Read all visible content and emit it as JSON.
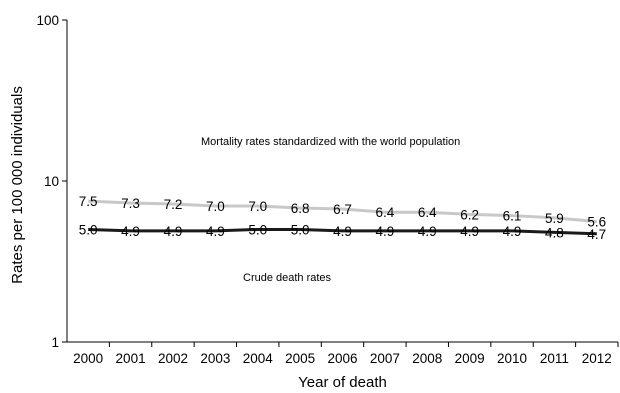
{
  "chart_data": {
    "type": "line",
    "title": "",
    "xlabel": "Year of death",
    "ylabel": "Rates per 100 000 individuals",
    "y_scale": "log",
    "ylim": [
      1,
      100
    ],
    "y_ticks": [
      "1",
      "10",
      "100"
    ],
    "grid": false,
    "legend": "none",
    "categories": [
      "2000",
      "2001",
      "2002",
      "2003",
      "2004",
      "2005",
      "2006",
      "2007",
      "2008",
      "2009",
      "2010",
      "2011",
      "2012"
    ],
    "series": [
      {
        "values": [
          7.5,
          7.3,
          7.2,
          7.0,
          7.0,
          6.8,
          6.7,
          6.4,
          6.4,
          6.2,
          6.1,
          5.9,
          5.6
        ],
        "labels": [
          "7.5",
          "7.3",
          "7.2",
          "7.0",
          "7.0",
          "6.8",
          "6.7",
          "6.4",
          "6.4",
          "6.2",
          "6.1",
          "5.9",
          "5.6"
        ],
        "color": "#c8c8c8"
      },
      {
        "values": [
          5.0,
          4.9,
          4.9,
          4.9,
          5.0,
          5.0,
          4.9,
          4.9,
          4.9,
          4.9,
          4.9,
          4.8,
          4.7
        ],
        "labels": [
          "5.0",
          "4.9",
          "4.9",
          "4.9",
          "5.0",
          "5.0",
          "4.9",
          "4.9",
          "4.9",
          "4.9",
          "4.9",
          "4.8",
          "4.7"
        ],
        "color": "#1a1a1a"
      }
    ],
    "annotations": [
      "Mortality rates standardized with the world population",
      "Crude death rates"
    ]
  }
}
